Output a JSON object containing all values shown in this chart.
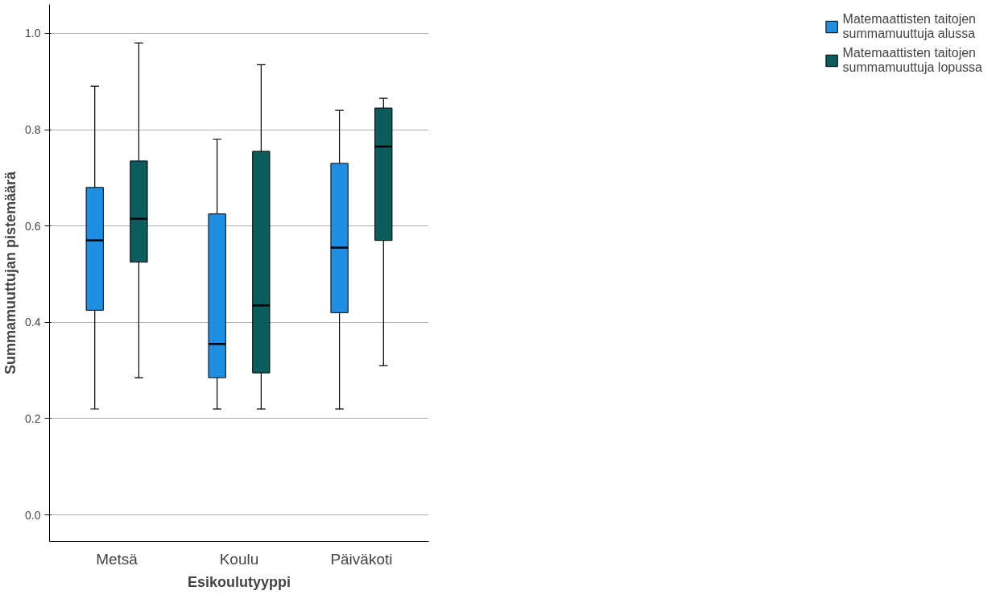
{
  "chart_data": {
    "type": "box",
    "xlabel": "Esikoulutyyppi",
    "ylabel": "Summamuuttujan pistemäärä",
    "categories": [
      "Metsä",
      "Koulu",
      "Päiväkoti"
    ],
    "ylim": [
      -0.055,
      1.06
    ],
    "yticks": [
      {
        "value": 0.0,
        "label": "0.0"
      },
      {
        "value": 0.2,
        "label": "0.2"
      },
      {
        "value": 0.4,
        "label": "0.4"
      },
      {
        "value": 0.6,
        "label": "0.6"
      },
      {
        "value": 0.8,
        "label": "0.8"
      },
      {
        "value": 1.0,
        "label": "1.0"
      }
    ],
    "grid": "y",
    "legend": "right",
    "series": [
      {
        "name": "Matemaattisten taitojen summamuuttuja alussa",
        "color": "#1e8fe3",
        "boxes": [
          {
            "low": 0.22,
            "q1": 0.425,
            "median": 0.57,
            "q3": 0.68,
            "high": 0.89
          },
          {
            "low": 0.22,
            "q1": 0.285,
            "median": 0.355,
            "q3": 0.625,
            "high": 0.78
          },
          {
            "low": 0.22,
            "q1": 0.42,
            "median": 0.555,
            "q3": 0.73,
            "high": 0.84
          }
        ]
      },
      {
        "name": "Matemaattisten taitojen summamuuttuja lopussa",
        "color": "#0b5c5c",
        "boxes": [
          {
            "low": 0.285,
            "q1": 0.525,
            "median": 0.615,
            "q3": 0.735,
            "high": 0.98
          },
          {
            "low": 0.22,
            "q1": 0.295,
            "median": 0.435,
            "q3": 0.755,
            "high": 0.935
          },
          {
            "low": 0.31,
            "q1": 0.57,
            "median": 0.765,
            "q3": 0.845,
            "high": 0.865
          }
        ]
      }
    ]
  }
}
